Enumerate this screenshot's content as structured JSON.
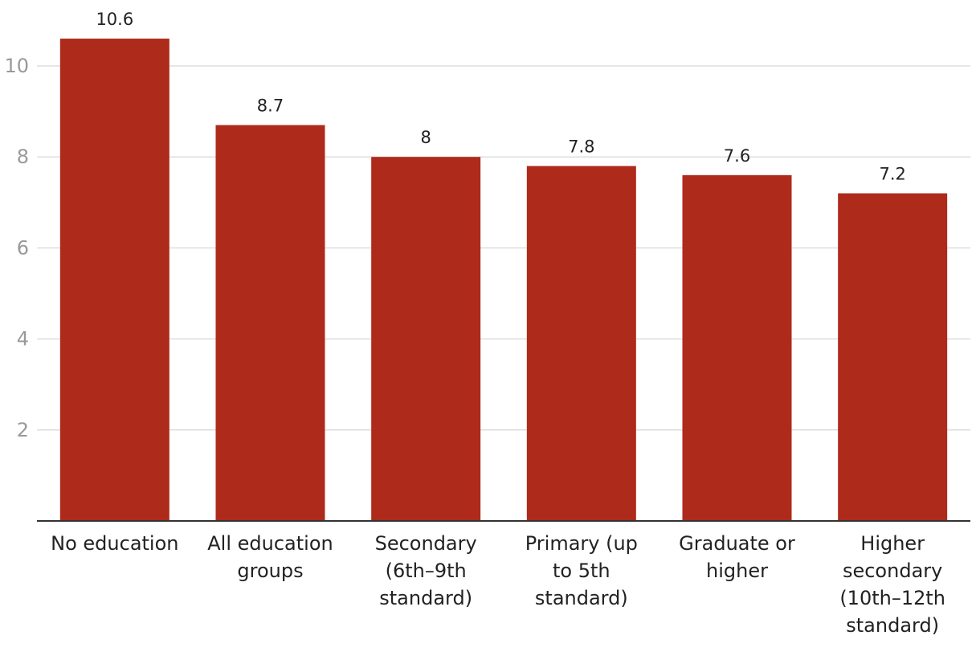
{
  "colors": {
    "bar": "#AE2A1A",
    "grid": "#DEDEDE",
    "axis": "#333333",
    "tick_text": "#999999",
    "label_text": "#222222"
  },
  "chart_data": {
    "type": "bar",
    "title": "",
    "xlabel": "",
    "ylabel": "",
    "ylim": [
      0,
      11.4
    ],
    "yticks": [
      2,
      4,
      6,
      8,
      10
    ],
    "grid": true,
    "categories": [
      [
        "No education"
      ],
      [
        "All education",
        "groups"
      ],
      [
        "Secondary",
        "(6th–9th",
        "standard)"
      ],
      [
        "Primary (up",
        "to 5th",
        "standard)"
      ],
      [
        "Graduate or",
        "higher"
      ],
      [
        "Higher",
        "secondary",
        "(10th–12th",
        "standard)"
      ]
    ],
    "values": [
      10.6,
      8.7,
      8,
      7.8,
      7.6,
      7.2
    ],
    "value_labels": [
      "10.6",
      "8.7",
      "8",
      "7.8",
      "7.6",
      "7.2"
    ]
  }
}
